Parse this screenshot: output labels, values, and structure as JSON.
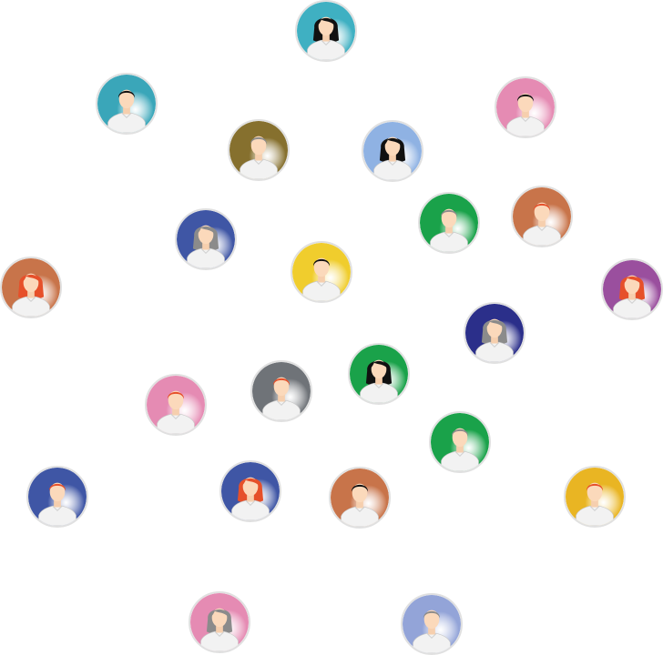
{
  "avatars": [
    {
      "id": "a1",
      "bg": "#3fb0c2",
      "hair": "#111111",
      "style": "female-long"
    },
    {
      "id": "a2",
      "bg": "#3aa6b9",
      "hair": "#111111",
      "style": "male"
    },
    {
      "id": "a3",
      "bg": "#e58bb3",
      "hair": "#111111",
      "style": "male"
    },
    {
      "id": "a4",
      "bg": "#86702e",
      "hair": "#8b8b8b",
      "style": "male"
    },
    {
      "id": "a5",
      "bg": "#8fb2e3",
      "hair": "#111111",
      "style": "female-long"
    },
    {
      "id": "a6",
      "bg": "#1aa24a",
      "hair": "#8b8b8b",
      "style": "male"
    },
    {
      "id": "a7",
      "bg": "#c8744a",
      "hair": "#e6502a",
      "style": "male"
    },
    {
      "id": "a8",
      "bg": "#3f56a5",
      "hair": "#8b8b8b",
      "style": "female-long"
    },
    {
      "id": "a9",
      "bg": "#f0cd2d",
      "hair": "#111111",
      "style": "male"
    },
    {
      "id": "a10",
      "bg": "#c8744a",
      "hair": "#e6502a",
      "style": "female-long"
    },
    {
      "id": "a11",
      "bg": "#9a4f9e",
      "hair": "#e6502a",
      "style": "female-long"
    },
    {
      "id": "a12",
      "bg": "#2b2f8a",
      "hair": "#8b8b8b",
      "style": "female-long"
    },
    {
      "id": "a13",
      "bg": "#1aa24a",
      "hair": "#111111",
      "style": "female-long"
    },
    {
      "id": "a14",
      "bg": "#6f7378",
      "hair": "#e6502a",
      "style": "male"
    },
    {
      "id": "a15",
      "bg": "#e58bb3",
      "hair": "#e6502a",
      "style": "male"
    },
    {
      "id": "a16",
      "bg": "#1aa24a",
      "hair": "#8b8b8b",
      "style": "male"
    },
    {
      "id": "a17",
      "bg": "#3f56a5",
      "hair": "#e6502a",
      "style": "male"
    },
    {
      "id": "a18",
      "bg": "#3f56a5",
      "hair": "#e6502a",
      "style": "female-long"
    },
    {
      "id": "a19",
      "bg": "#c8744a",
      "hair": "#111111",
      "style": "male"
    },
    {
      "id": "a20",
      "bg": "#e9b523",
      "hair": "#e6502a",
      "style": "male"
    },
    {
      "id": "a21",
      "bg": "#e58bb3",
      "hair": "#8b8b8b",
      "style": "female-long"
    },
    {
      "id": "a22",
      "bg": "#93a4d8",
      "hair": "#8b8b8b",
      "style": "male"
    }
  ]
}
